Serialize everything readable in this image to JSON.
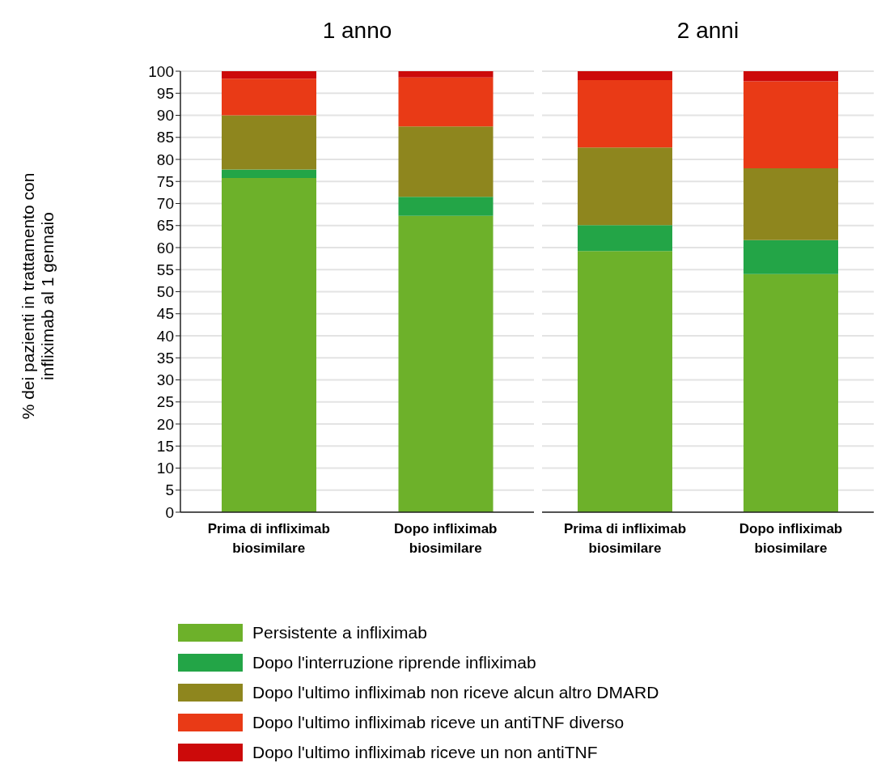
{
  "chart_data": [
    {
      "type": "bar",
      "title": "1 anno",
      "ylabel": "% dei pazienti in trattamento con infliximab al 1 gennaio",
      "stacked": true,
      "categories": [
        "Prima di infliximab biosimilare",
        "Dopo infliximab biosimilare"
      ],
      "ylim": [
        0,
        100
      ],
      "yticks": [
        0,
        5,
        10,
        15,
        20,
        25,
        30,
        35,
        40,
        45,
        50,
        55,
        60,
        65,
        70,
        75,
        80,
        85,
        90,
        95,
        100
      ],
      "grid": "y",
      "legend": "bottom",
      "series": [
        {
          "name": "Persistente a infliximab",
          "color": "#6db12a",
          "values": [
            75.8,
            67.2
          ]
        },
        {
          "name": "Dopo l'interruzione riprende infliximab",
          "color": "#23a547",
          "values": [
            1.9,
            4.3
          ]
        },
        {
          "name": "Dopo l'ultimo infliximab non riceve alcun altro DMARD",
          "color": "#8e861e",
          "values": [
            12.3,
            16.0
          ]
        },
        {
          "name": "Dopo l'ultimo infliximab riceve un antiTNF diverso",
          "color": "#e93a16",
          "values": [
            8.3,
            11.1
          ]
        },
        {
          "name": "Dopo l'ultimo infliximab riceve un non antiTNF",
          "color": "#cc0a0a",
          "values": [
            1.7,
            1.4
          ]
        }
      ]
    },
    {
      "type": "bar",
      "title": "2 anni",
      "stacked": true,
      "categories": [
        "Prima di infliximab biosimilare",
        "Dopo infliximab biosimilare"
      ],
      "ylim": [
        0,
        100
      ],
      "yticks": [
        0,
        5,
        10,
        15,
        20,
        25,
        30,
        35,
        40,
        45,
        50,
        55,
        60,
        65,
        70,
        75,
        80,
        85,
        90,
        95,
        100
      ],
      "grid": "y",
      "tick_labels": "x",
      "series": [
        {
          "color": "#6db12a",
          "values": [
            59.2,
            54.0
          ]
        },
        {
          "color": "#23a547",
          "values": [
            5.9,
            7.7
          ]
        },
        {
          "color": "#8e861e",
          "values": [
            17.6,
            16.3
          ]
        },
        {
          "color": "#e93a16",
          "values": [
            15.3,
            19.7
          ]
        },
        {
          "color": "#cc0a0a",
          "values": [
            2.0,
            2.3
          ]
        }
      ]
    }
  ]
}
